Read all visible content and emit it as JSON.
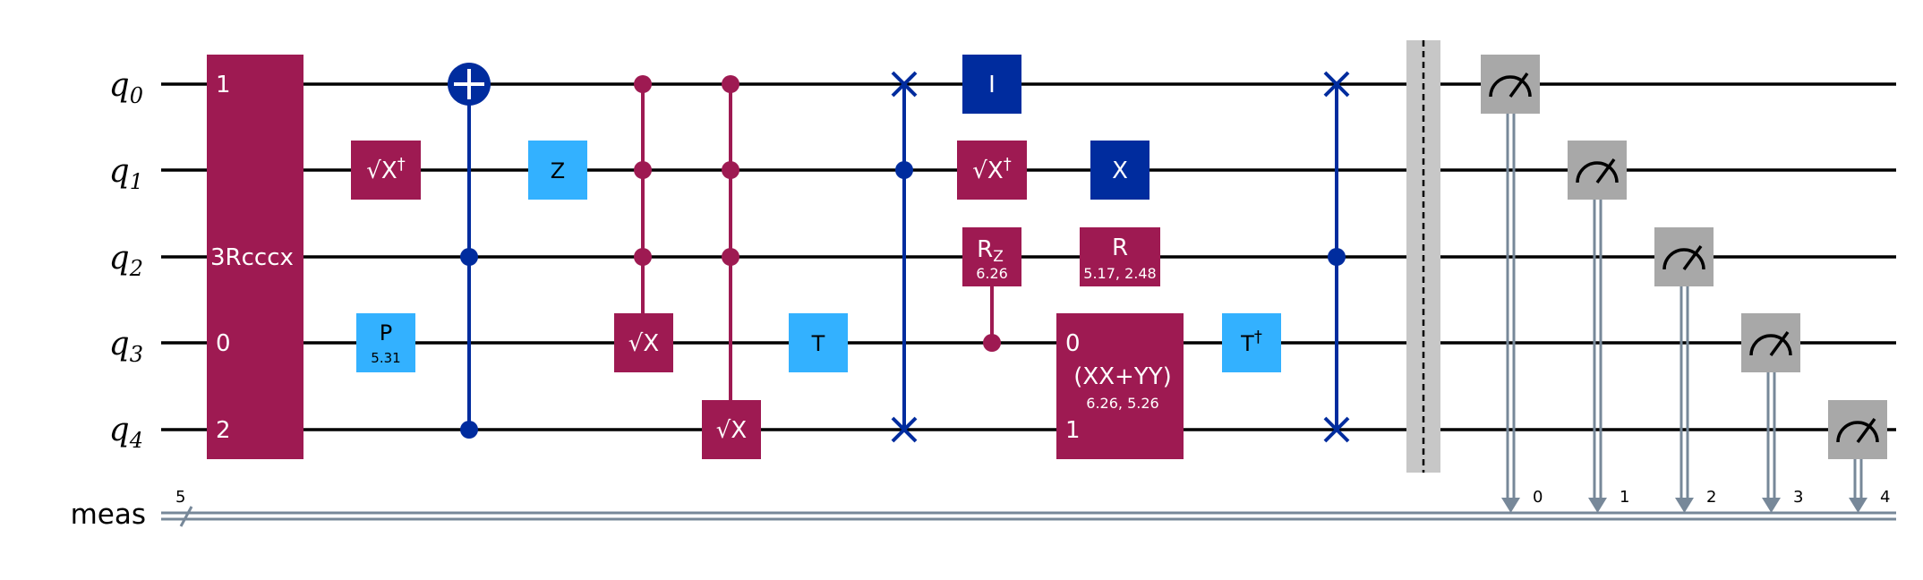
{
  "colors": {
    "wire": "#000000",
    "classical_wire": "#778899",
    "multi_controlled": "#9e1a52",
    "pauli": "#002c9e",
    "phase": "#33b1ff",
    "measure": "#a8a8a8",
    "barrier": "#c7c7c7"
  },
  "qubits": [
    {
      "base": "q",
      "index": "0"
    },
    {
      "base": "q",
      "index": "1"
    },
    {
      "base": "q",
      "index": "2"
    },
    {
      "base": "q",
      "index": "3"
    },
    {
      "base": "q",
      "index": "4"
    }
  ],
  "classical_register": {
    "name": "meas",
    "size": "5"
  },
  "gates": {
    "rcccx": {
      "label": "3Rcccx",
      "port_q0": "1",
      "port_q3": "0",
      "port_q4": "2"
    },
    "sxdg1": {
      "label": "√X",
      "dagger": "†"
    },
    "p": {
      "label": "P",
      "param": "5.31"
    },
    "z": {
      "label": "Z"
    },
    "sx_q3": {
      "label": "√X"
    },
    "sx_q4": {
      "label": "√X"
    },
    "t": {
      "label": "T"
    },
    "id": {
      "label": "I"
    },
    "sxdg2": {
      "label": "√X",
      "dagger": "†"
    },
    "rz": {
      "label": "R",
      "sub": "Z",
      "param": "6.26"
    },
    "x": {
      "label": "X"
    },
    "r": {
      "label": "R",
      "param": "5.17, 2.48"
    },
    "xxyy": {
      "label": "(XX+YY)",
      "param": "6.26, 5.26",
      "port_top": "0",
      "port_bottom": "1"
    },
    "tdg": {
      "label": "T",
      "dagger": "†"
    }
  },
  "measurements": [
    {
      "qubit": 0,
      "clbit": "0"
    },
    {
      "qubit": 1,
      "clbit": "1"
    },
    {
      "qubit": 2,
      "clbit": "2"
    },
    {
      "qubit": 3,
      "clbit": "3"
    },
    {
      "qubit": 4,
      "clbit": "4"
    }
  ]
}
